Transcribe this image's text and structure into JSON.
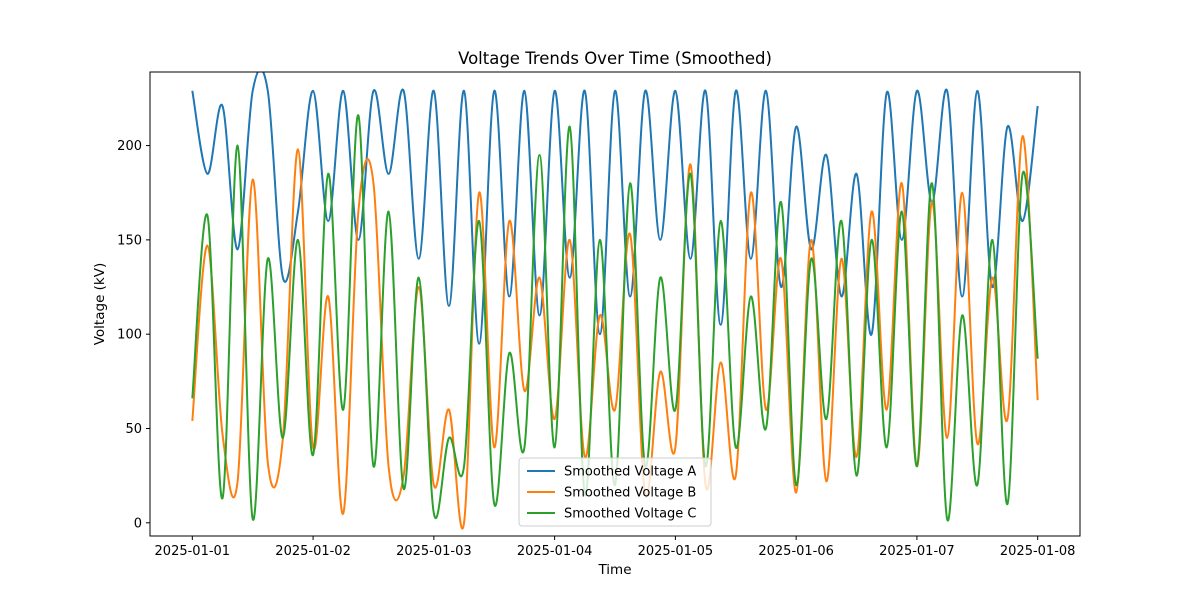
{
  "chart_data": {
    "type": "line",
    "title": "Voltage Trends Over Time (Smoothed)",
    "xlabel": "Time",
    "ylabel": "Voltage (kV)",
    "xlim": [
      "2025-01-01",
      "2025-01-08"
    ],
    "ylim": [
      -7,
      239
    ],
    "x_ticks": [
      "2025-01-01",
      "2025-01-02",
      "2025-01-03",
      "2025-01-04",
      "2025-01-05",
      "2025-01-06",
      "2025-01-07",
      "2025-01-08"
    ],
    "y_ticks": [
      0,
      50,
      100,
      150,
      200
    ],
    "grid": false,
    "legend_position": "bottom-center",
    "series": [
      {
        "name": "Smoothed Voltage A",
        "color": "#1f77b4",
        "x": [
          "2025-01-01T00:00",
          "2025-01-01T03:00",
          "2025-01-01T06:00",
          "2025-01-01T09:00",
          "2025-01-01T12:00",
          "2025-01-01T15:00",
          "2025-01-01T18:00",
          "2025-01-01T21:00",
          "2025-01-02T00:00",
          "2025-01-02T03:00",
          "2025-01-02T06:00",
          "2025-01-02T09:00",
          "2025-01-02T12:00",
          "2025-01-02T15:00",
          "2025-01-02T18:00",
          "2025-01-02T21:00",
          "2025-01-03T00:00",
          "2025-01-03T03:00",
          "2025-01-03T06:00",
          "2025-01-03T09:00",
          "2025-01-03T12:00",
          "2025-01-03T15:00",
          "2025-01-03T18:00",
          "2025-01-03T21:00",
          "2025-01-04T00:00",
          "2025-01-04T03:00",
          "2025-01-04T06:00",
          "2025-01-04T09:00",
          "2025-01-04T12:00",
          "2025-01-04T15:00",
          "2025-01-04T18:00",
          "2025-01-04T21:00",
          "2025-01-05T00:00",
          "2025-01-05T03:00",
          "2025-01-05T06:00",
          "2025-01-05T09:00",
          "2025-01-05T12:00",
          "2025-01-05T15:00",
          "2025-01-05T18:00",
          "2025-01-05T21:00",
          "2025-01-06T00:00",
          "2025-01-06T03:00",
          "2025-01-06T06:00",
          "2025-01-06T09:00",
          "2025-01-06T12:00",
          "2025-01-06T15:00",
          "2025-01-06T18:00",
          "2025-01-06T21:00",
          "2025-01-07T00:00",
          "2025-01-07T03:00",
          "2025-01-07T06:00",
          "2025-01-07T09:00",
          "2025-01-07T12:00",
          "2025-01-07T15:00",
          "2025-01-07T18:00",
          "2025-01-07T21:00",
          "2025-01-08T00:00"
        ],
        "values": [
          229,
          185,
          221,
          145,
          229,
          229,
          130,
          165,
          229,
          160,
          229,
          150,
          229,
          185,
          229,
          140,
          229,
          115,
          229,
          95,
          229,
          120,
          229,
          110,
          229,
          130,
          229,
          100,
          229,
          120,
          229,
          150,
          229,
          140,
          229,
          105,
          229,
          140,
          229,
          125,
          210,
          145,
          195,
          120,
          185,
          100,
          228,
          150,
          229,
          170,
          229,
          120,
          229,
          125,
          210,
          160,
          221
        ]
      },
      {
        "name": "Smoothed Voltage B",
        "color": "#ff7f0e",
        "x": [
          "2025-01-01T00:00",
          "2025-01-01T03:00",
          "2025-01-01T06:00",
          "2025-01-01T09:00",
          "2025-01-01T12:00",
          "2025-01-01T15:00",
          "2025-01-01T18:00",
          "2025-01-01T21:00",
          "2025-01-02T00:00",
          "2025-01-02T03:00",
          "2025-01-02T06:00",
          "2025-01-02T09:00",
          "2025-01-02T12:00",
          "2025-01-02T15:00",
          "2025-01-02T18:00",
          "2025-01-02T21:00",
          "2025-01-03T00:00",
          "2025-01-03T03:00",
          "2025-01-03T06:00",
          "2025-01-03T09:00",
          "2025-01-03T12:00",
          "2025-01-03T15:00",
          "2025-01-03T18:00",
          "2025-01-03T21:00",
          "2025-01-04T00:00",
          "2025-01-04T03:00",
          "2025-01-04T06:00",
          "2025-01-04T09:00",
          "2025-01-04T12:00",
          "2025-01-04T15:00",
          "2025-01-04T18:00",
          "2025-01-04T21:00",
          "2025-01-05T00:00",
          "2025-01-05T03:00",
          "2025-01-05T06:00",
          "2025-01-05T09:00",
          "2025-01-05T12:00",
          "2025-01-05T15:00",
          "2025-01-05T18:00",
          "2025-01-05T21:00",
          "2025-01-06T00:00",
          "2025-01-06T03:00",
          "2025-01-06T06:00",
          "2025-01-06T09:00",
          "2025-01-06T12:00",
          "2025-01-06T15:00",
          "2025-01-06T18:00",
          "2025-01-06T21:00",
          "2025-01-07T00:00",
          "2025-01-07T03:00",
          "2025-01-07T06:00",
          "2025-01-07T09:00",
          "2025-01-07T12:00",
          "2025-01-07T15:00",
          "2025-01-07T18:00",
          "2025-01-07T21:00",
          "2025-01-08T00:00"
        ],
        "values": [
          54,
          147,
          47,
          22,
          182,
          32,
          45,
          198,
          40,
          120,
          5,
          165,
          180,
          30,
          25,
          125,
          20,
          60,
          0,
          175,
          40,
          160,
          70,
          130,
          55,
          150,
          35,
          110,
          60,
          153,
          15,
          80,
          40,
          190,
          20,
          85,
          25,
          175,
          60,
          140,
          16,
          150,
          22,
          140,
          35,
          165,
          60,
          180,
          30,
          170,
          45,
          175,
          42,
          130,
          55,
          205,
          65
        ]
      },
      {
        "name": "Smoothed Voltage C",
        "color": "#2ca02c",
        "x": [
          "2025-01-01T00:00",
          "2025-01-01T03:00",
          "2025-01-01T06:00",
          "2025-01-01T09:00",
          "2025-01-01T12:00",
          "2025-01-01T15:00",
          "2025-01-01T18:00",
          "2025-01-01T21:00",
          "2025-01-02T00:00",
          "2025-01-02T03:00",
          "2025-01-02T06:00",
          "2025-01-02T09:00",
          "2025-01-02T12:00",
          "2025-01-02T15:00",
          "2025-01-02T18:00",
          "2025-01-02T21:00",
          "2025-01-03T00:00",
          "2025-01-03T03:00",
          "2025-01-03T06:00",
          "2025-01-03T09:00",
          "2025-01-03T12:00",
          "2025-01-03T15:00",
          "2025-01-03T18:00",
          "2025-01-03T21:00",
          "2025-01-04T00:00",
          "2025-01-04T03:00",
          "2025-01-04T06:00",
          "2025-01-04T09:00",
          "2025-01-04T12:00",
          "2025-01-04T15:00",
          "2025-01-04T18:00",
          "2025-01-04T21:00",
          "2025-01-05T00:00",
          "2025-01-05T03:00",
          "2025-01-05T06:00",
          "2025-01-05T09:00",
          "2025-01-05T12:00",
          "2025-01-05T15:00",
          "2025-01-05T18:00",
          "2025-01-05T21:00",
          "2025-01-06T00:00",
          "2025-01-06T03:00",
          "2025-01-06T06:00",
          "2025-01-06T09:00",
          "2025-01-06T12:00",
          "2025-01-06T15:00",
          "2025-01-06T18:00",
          "2025-01-06T21:00",
          "2025-01-07T00:00",
          "2025-01-07T03:00",
          "2025-01-07T06:00",
          "2025-01-07T09:00",
          "2025-01-07T12:00",
          "2025-01-07T15:00",
          "2025-01-07T18:00",
          "2025-01-07T21:00",
          "2025-01-08T00:00"
        ],
        "values": [
          66,
          163,
          13,
          200,
          2,
          140,
          45,
          150,
          36,
          185,
          60,
          216,
          30,
          165,
          18,
          130,
          5,
          45,
          30,
          160,
          10,
          90,
          40,
          195,
          40,
          210,
          15,
          150,
          20,
          180,
          30,
          130,
          60,
          185,
          30,
          160,
          40,
          120,
          50,
          170,
          20,
          140,
          55,
          160,
          25,
          150,
          40,
          165,
          30,
          180,
          2,
          110,
          20,
          150,
          10,
          185,
          87
        ]
      }
    ]
  }
}
